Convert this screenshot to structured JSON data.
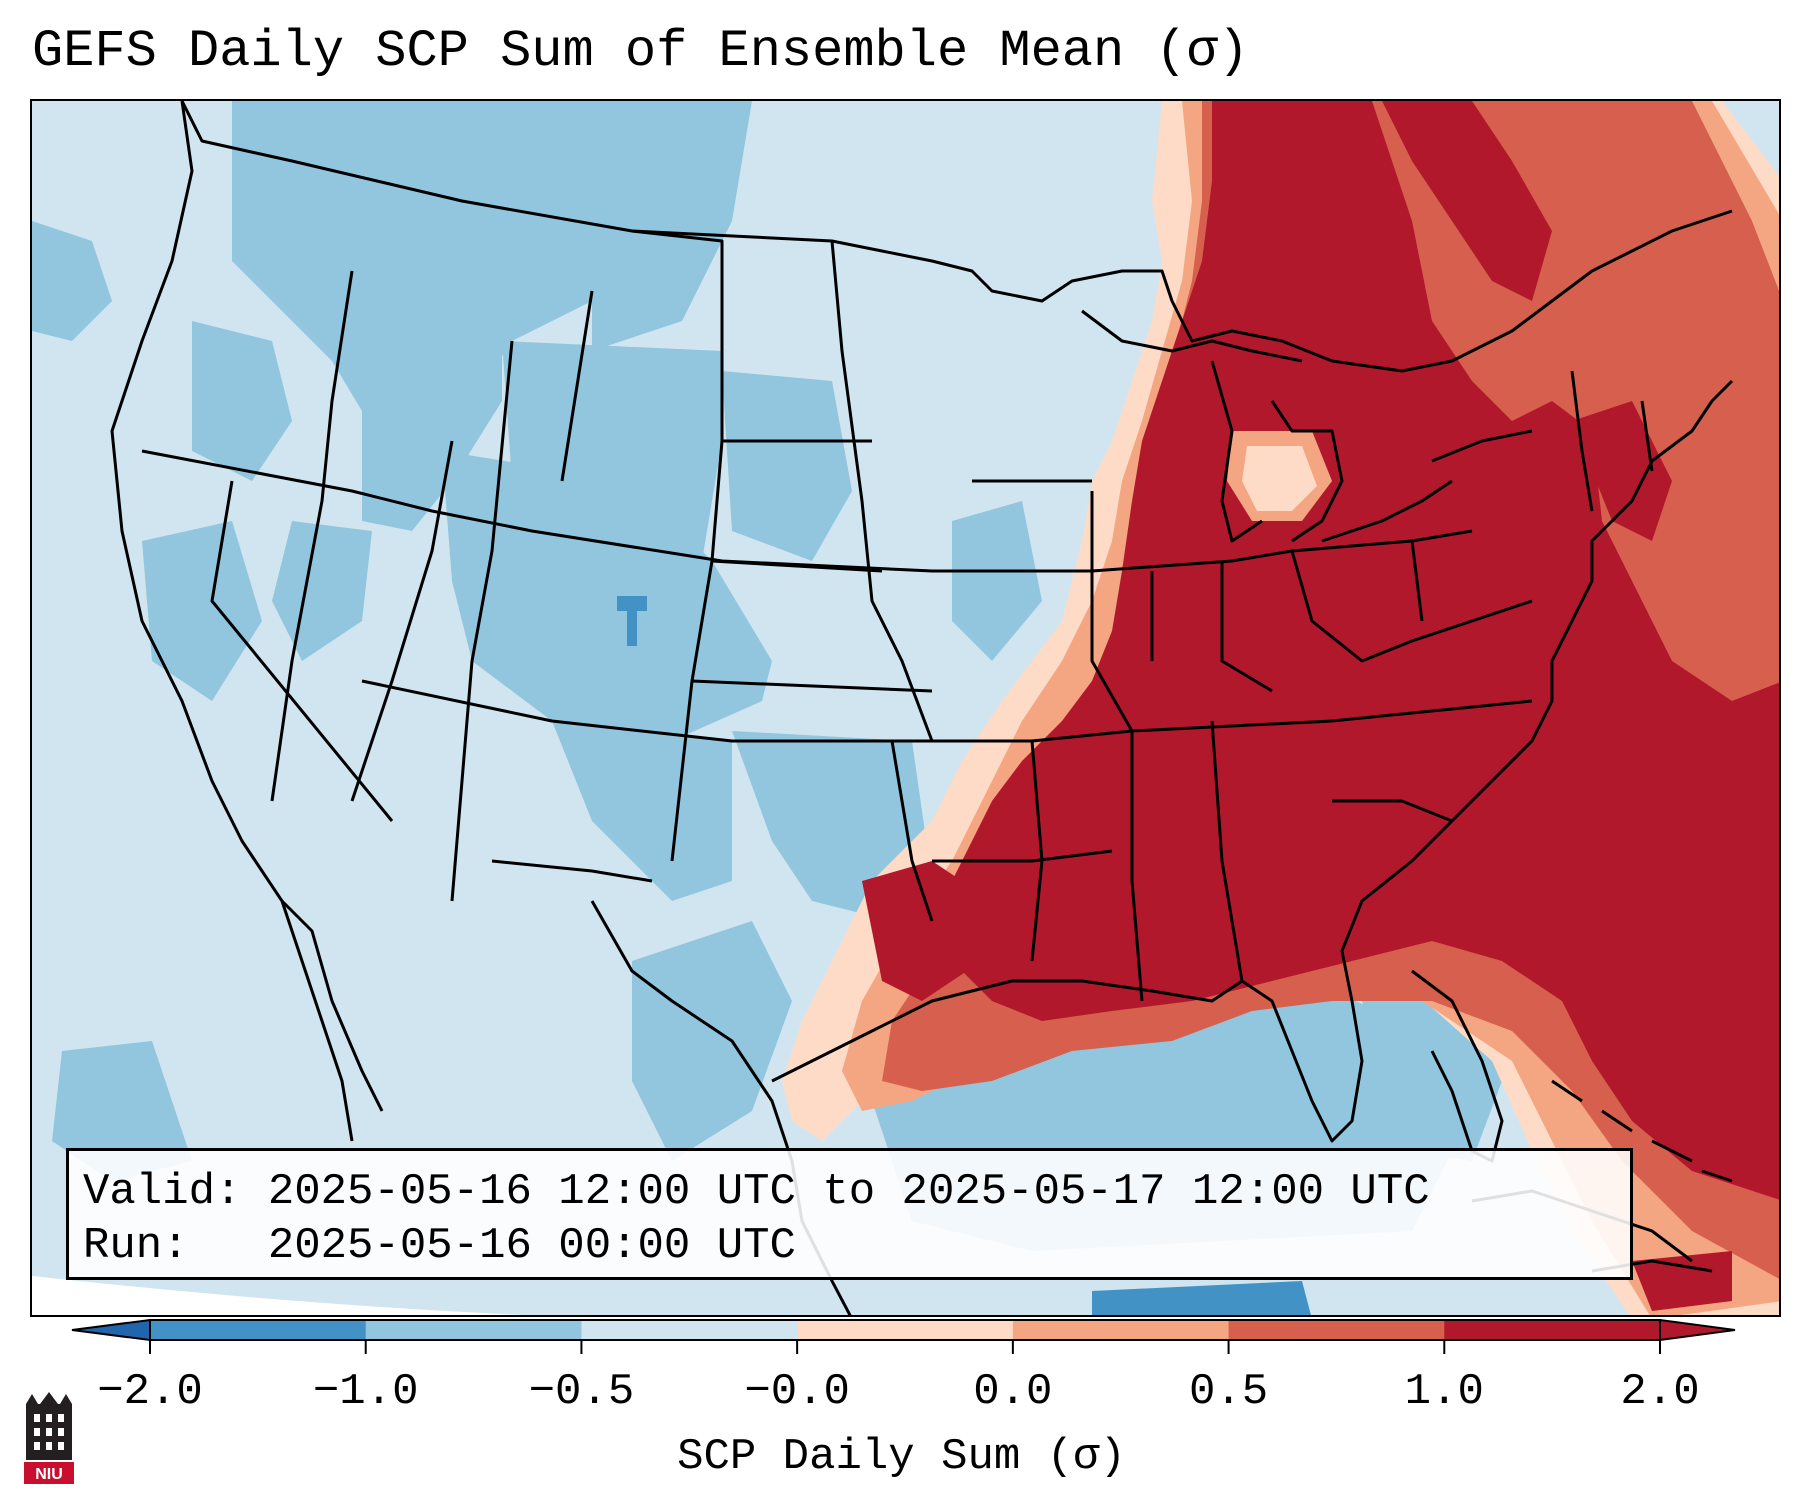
{
  "title": "GEFS Daily SCP Sum of Ensemble Mean (σ)",
  "info": {
    "valid_label": "Valid:",
    "valid_value": "2025-05-16 12:00 UTC to 2025-05-17 12:00 UTC",
    "run_label": "Run:",
    "run_value": "2025-05-16 00:00 UTC"
  },
  "colorbar": {
    "label": "SCP Daily Sum (σ)",
    "ticks": [
      "−2.0",
      "−1.0",
      "−0.5",
      "−0.0",
      "0.0",
      "0.5",
      "1.0",
      "2.0"
    ],
    "colors": [
      "#4292c6",
      "#92c5de",
      "#d1e5f0",
      "#fddbc7",
      "#f4a582",
      "#d6604d",
      "#b2182b"
    ],
    "under_color": "#2166ac",
    "over_color": "#b2182b"
  },
  "map": {
    "projection": "Lambert Conformal",
    "region": "CONUS",
    "fill_colors": {
      "background": "#cfe4f0",
      "light_blue": "#d1e5f0",
      "mid_blue": "#92c5de",
      "deep_blue": "#4292c6",
      "light_red": "#fddbc7",
      "salmon": "#f4a582",
      "red": "#d6604d",
      "dark_red": "#b2182b"
    }
  },
  "logo": {
    "text": "NIU",
    "name": "niu-logo"
  }
}
